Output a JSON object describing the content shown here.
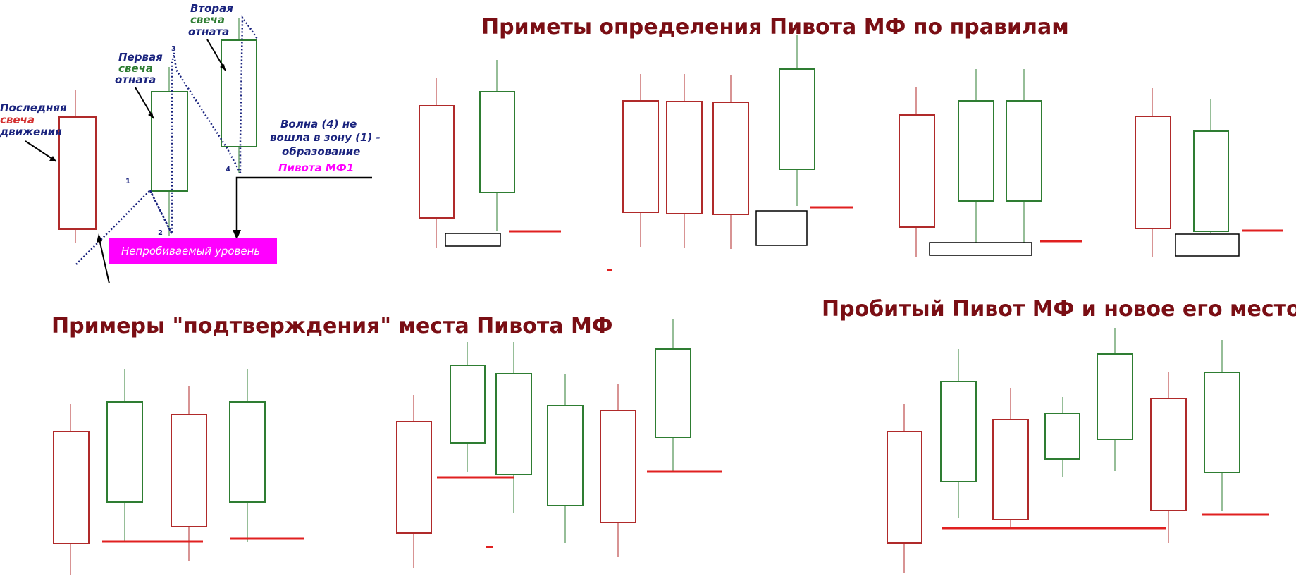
{
  "headings": {
    "rules": "Приметы определения Пивота МФ по правилам",
    "confirm": "Примеры \"подтверждения\" места Пивота МФ",
    "broken": "Пробитый Пивот МФ и новое его место"
  },
  "annotations": {
    "last_candle": [
      "Последняя",
      "свеча",
      "движения"
    ],
    "first_pullback": [
      "Первая",
      "свеча",
      "отната"
    ],
    "second_pullback": [
      "Вторая",
      "свеча",
      "отната"
    ],
    "wave_text": [
      "Волна (4) не",
      "вошла в зону (1) -",
      "образование"
    ],
    "pivot_label": "Пивота МФ1",
    "zone_label": "Непробиваемый уровень",
    "wave_numbers": [
      "1",
      "2",
      "3",
      "4"
    ]
  },
  "colors": {
    "bear": "#b02a2a",
    "bull": "#2e7d32",
    "level": "#e02020",
    "heading": "#7a0e14",
    "annotation_blue": "#1a237e",
    "annotation_red": "#d32f2f",
    "annotation_green": "#2e7d32",
    "zone": "#ff00ff",
    "dots": "#1a237e"
  }
}
